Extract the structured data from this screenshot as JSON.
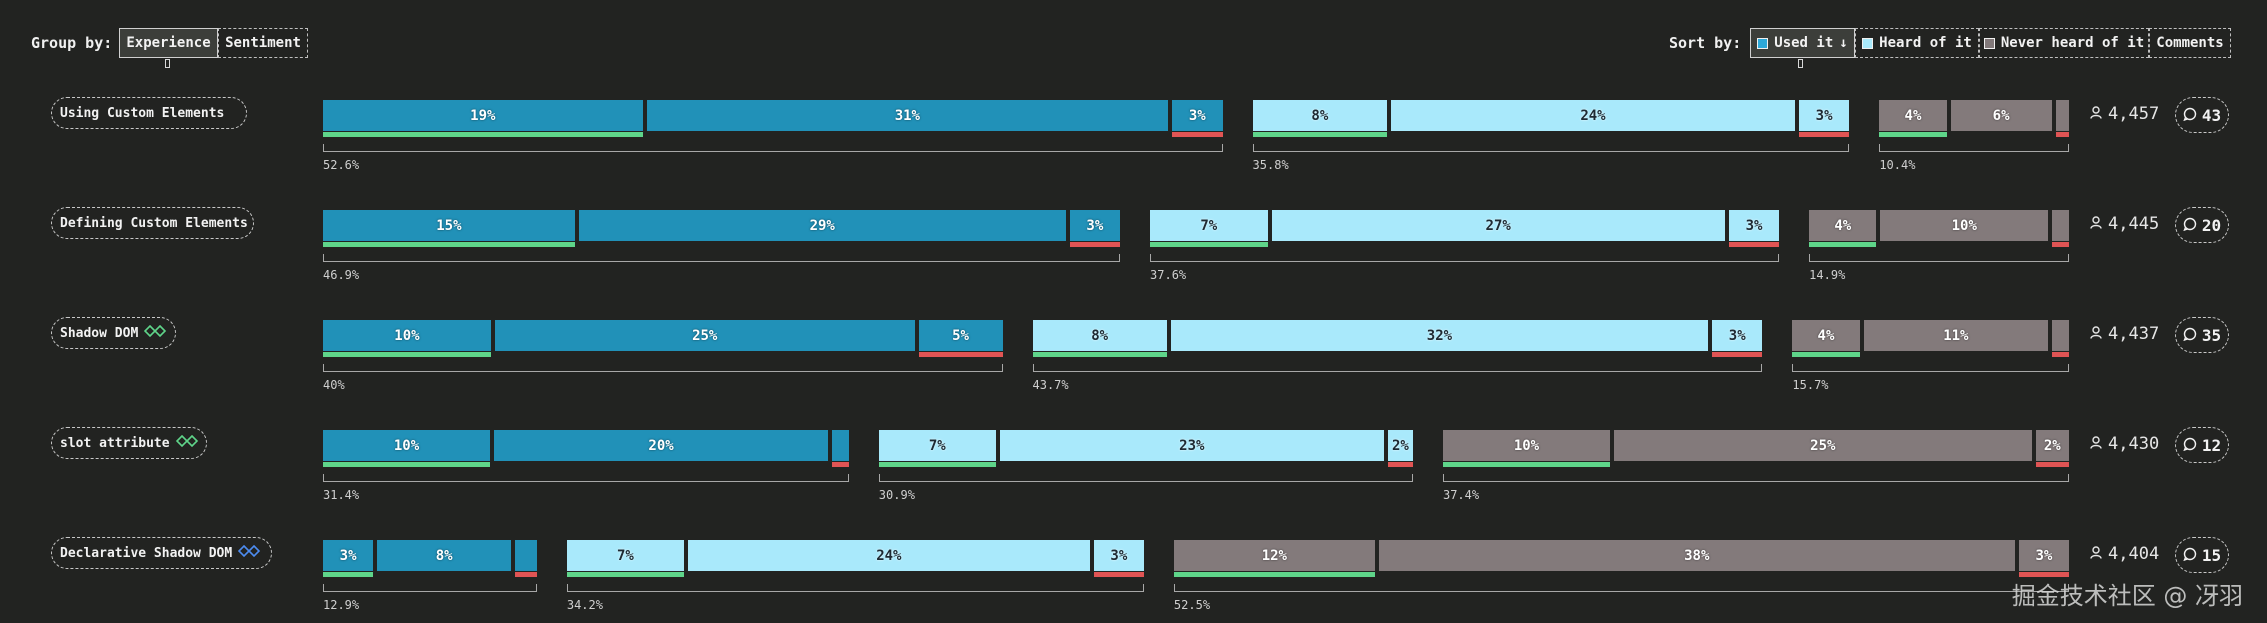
{
  "group_by": {
    "label": "Group by:",
    "options": [
      "Experience",
      "Sentiment"
    ],
    "active": 0
  },
  "sort_by": {
    "label": "Sort by:",
    "options": [
      {
        "label": "Used it",
        "arrow": "↓",
        "swatch": "#2da8d8"
      },
      {
        "label": "Heard of it",
        "swatch": "#a9e9fb"
      },
      {
        "label": "Never heard of it",
        "swatch": "#817879"
      },
      {
        "label": "Comments"
      }
    ],
    "active": 0
  },
  "colors": {
    "used": "#2191b8",
    "heard": "#a9e9fb",
    "never": "#837a7b",
    "positive": "#5fd58a",
    "negative": "#e05454"
  },
  "watermark": "掘金技术社区 @ 冴羽",
  "chart_data": {
    "type": "bar",
    "stacked": true,
    "groups": [
      "Used it",
      "Heard of it",
      "Never heard of it"
    ],
    "segment_order": [
      "positive",
      "neutral",
      "negative"
    ],
    "rows": [
      {
        "feature": "Using Custom Elements",
        "icon": null,
        "used": {
          "segments": [
            19,
            31,
            3
          ],
          "total": "52.6%"
        },
        "heard": {
          "segments": [
            8,
            24,
            3
          ],
          "total": "35.8%"
        },
        "never": {
          "segments": [
            4,
            6,
            0.8
          ],
          "total": "10.4%"
        },
        "respondents": "4,457",
        "comments": "43"
      },
      {
        "feature": "Defining Custom Elements",
        "icon": null,
        "used": {
          "segments": [
            15,
            29,
            3
          ],
          "total": "46.9%"
        },
        "heard": {
          "segments": [
            7,
            27,
            3
          ],
          "total": "37.6%"
        },
        "never": {
          "segments": [
            4,
            10,
            1
          ],
          "total": "14.9%"
        },
        "respondents": "4,445",
        "comments": "20"
      },
      {
        "feature": "Shadow DOM",
        "icon": "diamonds-green",
        "used": {
          "segments": [
            10,
            25,
            5
          ],
          "total": "40%"
        },
        "heard": {
          "segments": [
            8,
            32,
            3
          ],
          "total": "43.7%"
        },
        "never": {
          "segments": [
            4,
            11,
            1
          ],
          "total": "15.7%"
        },
        "respondents": "4,437",
        "comments": "35"
      },
      {
        "feature": "slot attribute",
        "icon": "diamonds-green",
        "used": {
          "segments": [
            10,
            20,
            1
          ],
          "total": "31.4%"
        },
        "heard": {
          "segments": [
            7,
            23,
            1.5
          ],
          "total": "30.9%"
        },
        "never": {
          "segments": [
            10,
            25,
            2
          ],
          "total": "37.4%"
        },
        "respondents": "4,430",
        "comments": "12"
      },
      {
        "feature": "Declarative Shadow DOM",
        "icon": "diamonds-blue",
        "used": {
          "segments": [
            3,
            8,
            1.3
          ],
          "total": "12.9%"
        },
        "heard": {
          "segments": [
            7,
            24,
            3
          ],
          "total": "34.2%"
        },
        "never": {
          "segments": [
            12,
            38,
            3
          ],
          "total": "52.5%"
        },
        "respondents": "4,404",
        "comments": "15"
      }
    ]
  }
}
